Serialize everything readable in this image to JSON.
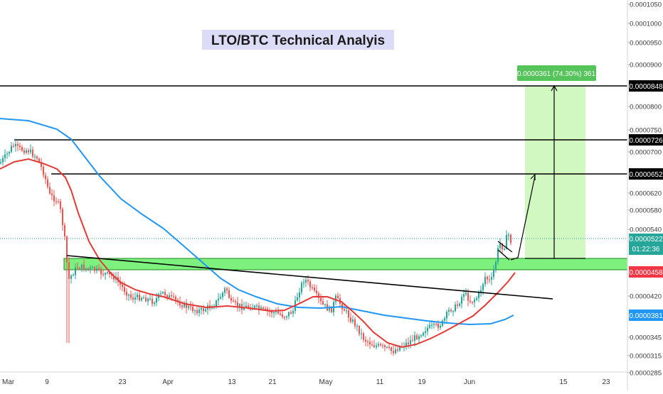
{
  "chart_data": {
    "type": "candlestick",
    "title": "LTO/BTC Technical Analyis",
    "price_axis": {
      "side": "right",
      "range": [
        2.8e-05,
        0.000107
      ],
      "ticks": [
        "0.0001050",
        "0.0001000",
        "0.0000950",
        "0.0000900",
        "0.0000800",
        "0.0000750",
        "0.0000700",
        "0.0000620",
        "0.0000580",
        "0.0000540",
        "0.0000420",
        "0.0000345",
        "0.0000315",
        "0.0000285"
      ]
    },
    "time_axis": {
      "ticks": [
        "Mar",
        "9",
        "23",
        "Apr",
        "13",
        "21",
        "May",
        "11",
        "19",
        "Jun",
        "15",
        "23"
      ]
    },
    "price_labels": {
      "target_top": "0.0000848",
      "target_mid": "0.0000726",
      "target_low": "0.0000652",
      "current": "0.0000522",
      "countdown": "01:22:36",
      "support": "0.0000458",
      "ma_slow": "0.0000381"
    },
    "measure_label": "0.0000361 (74.30%) 361",
    "horizontal_levels": [
      {
        "name": "resistance-1",
        "price": 8.48e-05
      },
      {
        "name": "resistance-2",
        "price": 7.26e-05
      },
      {
        "name": "resistance-3",
        "price": 6.52e-05
      }
    ],
    "support_zone": {
      "low": 4.55e-05,
      "high": 4.76e-05
    },
    "colors": {
      "up": "#26a69a",
      "down": "#ef5350",
      "ma_fast": "#e53935",
      "ma_slow": "#2196f3",
      "zone_fill": "#7ef07e",
      "projection_fill": "#c9f7b5",
      "measure_box": "#55c45a",
      "current_price": "#26a69a",
      "title_bg": "#dcdcf8"
    }
  }
}
